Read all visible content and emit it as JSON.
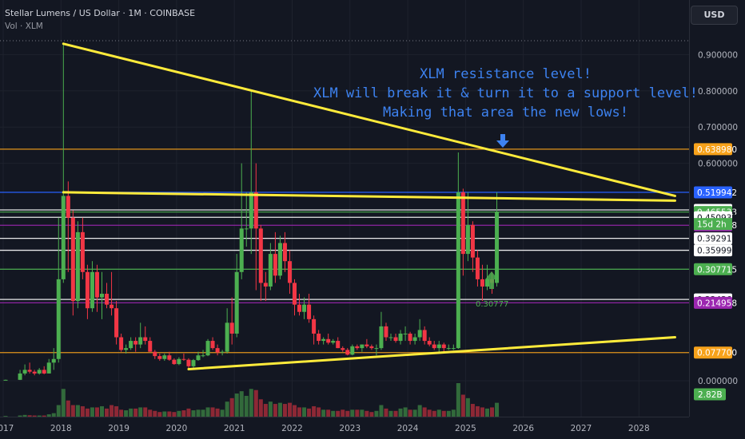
{
  "header": {
    "symbol": "Stellar Lumens / US Dollar · 1M · COINBASE",
    "volume_label": "Vol · XLM",
    "currency": "USD"
  },
  "annotation": {
    "lines": [
      "XLM resistance level!",
      "XLM will break it & turn it to a support level!",
      "Making that area the new lows!"
    ],
    "color": "#3d82f0"
  },
  "chart_data": {
    "type": "candlestick",
    "instrument": "XLMUSD",
    "interval": "1M",
    "x_ticks": [
      "2017",
      "2018",
      "2019",
      "2020",
      "2021",
      "2022",
      "2023",
      "2024",
      "2025",
      "2026",
      "2027",
      "2028"
    ],
    "y_ticks": [
      "0.900000",
      "0.800000",
      "0.700000",
      "0.600000",
      "0.000000"
    ],
    "y_range": [
      0,
      0.95
    ],
    "horizontal_levels": [
      {
        "value": 0.63898,
        "label": "0.638980",
        "color": "#f7a21b",
        "badge": true
      },
      {
        "value": 0.519942,
        "label": "0.519942",
        "color": "#2962ff",
        "badge": true
      },
      {
        "value": 0.471316,
        "label": "0.471316",
        "color": "#ffffff",
        "badge": false
      },
      {
        "value": 0.465533,
        "label": "0.465533",
        "color": "#4caf50",
        "badge": true
      },
      {
        "value": 0.450932,
        "label": "0.450932",
        "color": "#ffffff",
        "badge": false
      },
      {
        "value": 0.428978,
        "label": "0.428978",
        "color": "#9c27b0",
        "badge": true
      },
      {
        "value": 0.392919,
        "label": "0.392919",
        "color": "#ffffff",
        "badge": false
      },
      {
        "value": 0.359992,
        "label": "0.359992",
        "color": "#ffffff",
        "badge": false
      },
      {
        "value": 0.307715,
        "label": "0.307715",
        "color": "#4caf50",
        "badge": true
      },
      {
        "value": 0.224366,
        "label": "0.224366",
        "color": "#ffffff",
        "badge": false
      },
      {
        "value": 0.214958,
        "label": "0.214958",
        "color": "#9c27b0",
        "badge": true
      },
      {
        "value": 0.0777,
        "label": "0.077700",
        "color": "#f7a21b",
        "badge": true
      }
    ],
    "countdown": "15d 2h",
    "volume_badge": "2.82B",
    "low_marker": "0.30777",
    "colors": {
      "up": "#4caf50",
      "down": "#f23645",
      "trendline": "#ffeb3b",
      "grid": "#1e222d"
    },
    "candles": [
      {
        "t": "2016-07",
        "o": 0.0021,
        "h": 0.003,
        "l": 0.0015,
        "c": 0.002,
        "v": 0.05
      },
      {
        "t": "2016-10",
        "o": 0.002,
        "h": 0.0028,
        "l": 0.0018,
        "c": 0.0024,
        "v": 0.05
      },
      {
        "t": "2017-01",
        "o": 0.0024,
        "h": 0.003,
        "l": 0.002,
        "c": 0.0025,
        "v": 0.06
      },
      {
        "t": "2017-04",
        "o": 0.0025,
        "h": 0.03,
        "l": 0.002,
        "c": 0.02,
        "v": 0.1
      },
      {
        "t": "2017-05",
        "o": 0.02,
        "h": 0.045,
        "l": 0.015,
        "c": 0.03,
        "v": 0.15
      },
      {
        "t": "2017-06",
        "o": 0.03,
        "h": 0.05,
        "l": 0.02,
        "c": 0.025,
        "v": 0.12
      },
      {
        "t": "2017-07",
        "o": 0.025,
        "h": 0.03,
        "l": 0.015,
        "c": 0.02,
        "v": 0.1
      },
      {
        "t": "2017-08",
        "o": 0.02,
        "h": 0.035,
        "l": 0.017,
        "c": 0.03,
        "v": 0.1
      },
      {
        "t": "2017-09",
        "o": 0.03,
        "h": 0.04,
        "l": 0.018,
        "c": 0.02,
        "v": 0.1
      },
      {
        "t": "2017-10",
        "o": 0.02,
        "h": 0.06,
        "l": 0.02,
        "c": 0.05,
        "v": 0.2
      },
      {
        "t": "2017-11",
        "o": 0.05,
        "h": 0.09,
        "l": 0.03,
        "c": 0.06,
        "v": 0.3
      },
      {
        "t": "2017-12",
        "o": 0.06,
        "h": 0.45,
        "l": 0.05,
        "c": 0.28,
        "v": 1.0
      },
      {
        "t": "2018-01",
        "o": 0.28,
        "h": 0.93,
        "l": 0.27,
        "c": 0.51,
        "v": 2.4
      },
      {
        "t": "2018-02",
        "o": 0.51,
        "h": 0.55,
        "l": 0.3,
        "c": 0.45,
        "v": 1.4
      },
      {
        "t": "2018-03",
        "o": 0.45,
        "h": 0.47,
        "l": 0.18,
        "c": 0.22,
        "v": 1.0
      },
      {
        "t": "2018-04",
        "o": 0.22,
        "h": 0.44,
        "l": 0.2,
        "c": 0.41,
        "v": 1.0
      },
      {
        "t": "2018-05",
        "o": 0.41,
        "h": 0.45,
        "l": 0.28,
        "c": 0.3,
        "v": 0.9
      },
      {
        "t": "2018-06",
        "o": 0.3,
        "h": 0.32,
        "l": 0.17,
        "c": 0.2,
        "v": 0.7
      },
      {
        "t": "2018-07",
        "o": 0.2,
        "h": 0.33,
        "l": 0.19,
        "c": 0.3,
        "v": 0.8
      },
      {
        "t": "2018-08",
        "o": 0.3,
        "h": 0.32,
        "l": 0.19,
        "c": 0.23,
        "v": 0.8
      },
      {
        "t": "2018-09",
        "o": 0.23,
        "h": 0.3,
        "l": 0.17,
        "c": 0.24,
        "v": 0.9
      },
      {
        "t": "2018-10",
        "o": 0.24,
        "h": 0.27,
        "l": 0.2,
        "c": 0.21,
        "v": 0.7
      },
      {
        "t": "2018-11",
        "o": 0.21,
        "h": 0.3,
        "l": 0.18,
        "c": 0.2,
        "v": 1.0
      },
      {
        "t": "2018-12",
        "o": 0.2,
        "h": 0.22,
        "l": 0.1,
        "c": 0.12,
        "v": 0.9
      },
      {
        "t": "2019-01",
        "o": 0.12,
        "h": 0.13,
        "l": 0.08,
        "c": 0.085,
        "v": 0.6
      },
      {
        "t": "2019-02",
        "o": 0.085,
        "h": 0.1,
        "l": 0.075,
        "c": 0.09,
        "v": 0.55
      },
      {
        "t": "2019-03",
        "o": 0.09,
        "h": 0.12,
        "l": 0.085,
        "c": 0.11,
        "v": 0.7
      },
      {
        "t": "2019-04",
        "o": 0.11,
        "h": 0.12,
        "l": 0.08,
        "c": 0.1,
        "v": 0.7
      },
      {
        "t": "2019-05",
        "o": 0.1,
        "h": 0.16,
        "l": 0.09,
        "c": 0.12,
        "v": 0.8
      },
      {
        "t": "2019-06",
        "o": 0.12,
        "h": 0.15,
        "l": 0.1,
        "c": 0.11,
        "v": 0.8
      },
      {
        "t": "2019-07",
        "o": 0.11,
        "h": 0.12,
        "l": 0.08,
        "c": 0.08,
        "v": 0.6
      },
      {
        "t": "2019-08",
        "o": 0.08,
        "h": 0.085,
        "l": 0.06,
        "c": 0.068,
        "v": 0.5
      },
      {
        "t": "2019-09",
        "o": 0.068,
        "h": 0.075,
        "l": 0.055,
        "c": 0.06,
        "v": 0.4
      },
      {
        "t": "2019-10",
        "o": 0.06,
        "h": 0.075,
        "l": 0.055,
        "c": 0.07,
        "v": 0.45
      },
      {
        "t": "2019-11",
        "o": 0.07,
        "h": 0.08,
        "l": 0.055,
        "c": 0.058,
        "v": 0.45
      },
      {
        "t": "2019-12",
        "o": 0.058,
        "h": 0.062,
        "l": 0.044,
        "c": 0.046,
        "v": 0.4
      },
      {
        "t": "2020-01",
        "o": 0.046,
        "h": 0.065,
        "l": 0.043,
        "c": 0.06,
        "v": 0.5
      },
      {
        "t": "2020-02",
        "o": 0.06,
        "h": 0.075,
        "l": 0.055,
        "c": 0.058,
        "v": 0.55
      },
      {
        "t": "2020-03",
        "o": 0.058,
        "h": 0.062,
        "l": 0.03,
        "c": 0.04,
        "v": 0.7
      },
      {
        "t": "2020-04",
        "o": 0.04,
        "h": 0.06,
        "l": 0.036,
        "c": 0.057,
        "v": 0.55
      },
      {
        "t": "2020-05",
        "o": 0.057,
        "h": 0.08,
        "l": 0.055,
        "c": 0.07,
        "v": 0.6
      },
      {
        "t": "2020-06",
        "o": 0.07,
        "h": 0.085,
        "l": 0.065,
        "c": 0.07,
        "v": 0.6
      },
      {
        "t": "2020-07",
        "o": 0.07,
        "h": 0.115,
        "l": 0.068,
        "c": 0.11,
        "v": 0.8
      },
      {
        "t": "2020-08",
        "o": 0.11,
        "h": 0.12,
        "l": 0.085,
        "c": 0.09,
        "v": 0.8
      },
      {
        "t": "2020-09",
        "o": 0.09,
        "h": 0.1,
        "l": 0.07,
        "c": 0.078,
        "v": 0.7
      },
      {
        "t": "2020-10",
        "o": 0.078,
        "h": 0.085,
        "l": 0.07,
        "c": 0.08,
        "v": 0.6
      },
      {
        "t": "2020-11",
        "o": 0.08,
        "h": 0.2,
        "l": 0.075,
        "c": 0.16,
        "v": 1.3
      },
      {
        "t": "2020-12",
        "o": 0.16,
        "h": 0.23,
        "l": 0.1,
        "c": 0.13,
        "v": 1.6
      },
      {
        "t": "2021-01",
        "o": 0.13,
        "h": 0.35,
        "l": 0.12,
        "c": 0.3,
        "v": 2.0
      },
      {
        "t": "2021-02",
        "o": 0.3,
        "h": 0.6,
        "l": 0.28,
        "c": 0.42,
        "v": 2.2
      },
      {
        "t": "2021-03",
        "o": 0.42,
        "h": 0.52,
        "l": 0.37,
        "c": 0.42,
        "v": 1.8
      },
      {
        "t": "2021-04",
        "o": 0.42,
        "h": 0.8,
        "l": 0.35,
        "c": 0.52,
        "v": 2.4
      },
      {
        "t": "2021-05",
        "o": 0.52,
        "h": 0.6,
        "l": 0.25,
        "c": 0.42,
        "v": 2.3
      },
      {
        "t": "2021-06",
        "o": 0.42,
        "h": 0.43,
        "l": 0.22,
        "c": 0.27,
        "v": 1.5
      },
      {
        "t": "2021-07",
        "o": 0.27,
        "h": 0.3,
        "l": 0.22,
        "c": 0.26,
        "v": 1.1
      },
      {
        "t": "2021-08",
        "o": 0.26,
        "h": 0.38,
        "l": 0.25,
        "c": 0.35,
        "v": 1.3
      },
      {
        "t": "2021-09",
        "o": 0.35,
        "h": 0.41,
        "l": 0.27,
        "c": 0.29,
        "v": 1.1
      },
      {
        "t": "2021-10",
        "o": 0.29,
        "h": 0.4,
        "l": 0.28,
        "c": 0.38,
        "v": 1.2
      },
      {
        "t": "2021-11",
        "o": 0.38,
        "h": 0.41,
        "l": 0.3,
        "c": 0.33,
        "v": 1.1
      },
      {
        "t": "2021-12",
        "o": 0.33,
        "h": 0.36,
        "l": 0.24,
        "c": 0.27,
        "v": 1.2
      },
      {
        "t": "2022-01",
        "o": 0.27,
        "h": 0.28,
        "l": 0.18,
        "c": 0.21,
        "v": 1.0
      },
      {
        "t": "2022-02",
        "o": 0.21,
        "h": 0.24,
        "l": 0.18,
        "c": 0.19,
        "v": 0.8
      },
      {
        "t": "2022-03",
        "o": 0.19,
        "h": 0.23,
        "l": 0.17,
        "c": 0.21,
        "v": 0.8
      },
      {
        "t": "2022-04",
        "o": 0.21,
        "h": 0.24,
        "l": 0.16,
        "c": 0.17,
        "v": 0.7
      },
      {
        "t": "2022-05",
        "o": 0.17,
        "h": 0.18,
        "l": 0.1,
        "c": 0.13,
        "v": 0.9
      },
      {
        "t": "2022-06",
        "o": 0.13,
        "h": 0.14,
        "l": 0.1,
        "c": 0.11,
        "v": 0.8
      },
      {
        "t": "2022-07",
        "o": 0.11,
        "h": 0.12,
        "l": 0.1,
        "c": 0.115,
        "v": 0.6
      },
      {
        "t": "2022-08",
        "o": 0.115,
        "h": 0.13,
        "l": 0.1,
        "c": 0.105,
        "v": 0.6
      },
      {
        "t": "2022-09",
        "o": 0.105,
        "h": 0.115,
        "l": 0.1,
        "c": 0.11,
        "v": 0.5
      },
      {
        "t": "2022-10",
        "o": 0.11,
        "h": 0.12,
        "l": 0.09,
        "c": 0.09,
        "v": 0.5
      },
      {
        "t": "2022-11",
        "o": 0.09,
        "h": 0.095,
        "l": 0.08,
        "c": 0.085,
        "v": 0.6
      },
      {
        "t": "2022-12",
        "o": 0.085,
        "h": 0.09,
        "l": 0.07,
        "c": 0.072,
        "v": 0.5
      },
      {
        "t": "2023-01",
        "o": 0.072,
        "h": 0.1,
        "l": 0.07,
        "c": 0.095,
        "v": 0.6
      },
      {
        "t": "2023-02",
        "o": 0.095,
        "h": 0.1,
        "l": 0.085,
        "c": 0.09,
        "v": 0.6
      },
      {
        "t": "2023-03",
        "o": 0.09,
        "h": 0.1,
        "l": 0.08,
        "c": 0.1,
        "v": 0.6
      },
      {
        "t": "2023-04",
        "o": 0.1,
        "h": 0.115,
        "l": 0.09,
        "c": 0.095,
        "v": 0.5
      },
      {
        "t": "2023-05",
        "o": 0.095,
        "h": 0.1,
        "l": 0.085,
        "c": 0.09,
        "v": 0.4
      },
      {
        "t": "2023-06",
        "o": 0.09,
        "h": 0.1,
        "l": 0.07,
        "c": 0.09,
        "v": 0.5
      },
      {
        "t": "2023-07",
        "o": 0.09,
        "h": 0.19,
        "l": 0.085,
        "c": 0.15,
        "v": 1.0
      },
      {
        "t": "2023-08",
        "o": 0.15,
        "h": 0.16,
        "l": 0.11,
        "c": 0.12,
        "v": 0.7
      },
      {
        "t": "2023-09",
        "o": 0.12,
        "h": 0.13,
        "l": 0.11,
        "c": 0.12,
        "v": 0.5
      },
      {
        "t": "2023-10",
        "o": 0.12,
        "h": 0.13,
        "l": 0.105,
        "c": 0.11,
        "v": 0.5
      },
      {
        "t": "2023-11",
        "o": 0.11,
        "h": 0.14,
        "l": 0.1,
        "c": 0.13,
        "v": 0.7
      },
      {
        "t": "2023-12",
        "o": 0.13,
        "h": 0.15,
        "l": 0.11,
        "c": 0.13,
        "v": 0.8
      },
      {
        "t": "2024-01",
        "o": 0.13,
        "h": 0.135,
        "l": 0.1,
        "c": 0.11,
        "v": 0.6
      },
      {
        "t": "2024-02",
        "o": 0.11,
        "h": 0.13,
        "l": 0.1,
        "c": 0.12,
        "v": 0.6
      },
      {
        "t": "2024-03",
        "o": 0.12,
        "h": 0.17,
        "l": 0.11,
        "c": 0.14,
        "v": 1.0
      },
      {
        "t": "2024-04",
        "o": 0.14,
        "h": 0.15,
        "l": 0.1,
        "c": 0.11,
        "v": 0.8
      },
      {
        "t": "2024-05",
        "o": 0.11,
        "h": 0.12,
        "l": 0.095,
        "c": 0.1,
        "v": 0.6
      },
      {
        "t": "2024-06",
        "o": 0.1,
        "h": 0.11,
        "l": 0.085,
        "c": 0.09,
        "v": 0.5
      },
      {
        "t": "2024-07",
        "o": 0.09,
        "h": 0.11,
        "l": 0.08,
        "c": 0.1,
        "v": 0.6
      },
      {
        "t": "2024-08",
        "o": 0.1,
        "h": 0.105,
        "l": 0.08,
        "c": 0.09,
        "v": 0.5
      },
      {
        "t": "2024-09",
        "o": 0.09,
        "h": 0.1,
        "l": 0.085,
        "c": 0.09,
        "v": 0.5
      },
      {
        "t": "2024-10",
        "o": 0.09,
        "h": 0.1,
        "l": 0.085,
        "c": 0.09,
        "v": 0.6
      },
      {
        "t": "2024-11",
        "o": 0.09,
        "h": 0.63,
        "l": 0.088,
        "c": 0.52,
        "v": 2.9
      },
      {
        "t": "2024-12",
        "o": 0.52,
        "h": 0.53,
        "l": 0.29,
        "c": 0.35,
        "v": 1.9
      },
      {
        "t": "2025-01",
        "o": 0.35,
        "h": 0.52,
        "l": 0.33,
        "c": 0.43,
        "v": 1.6
      },
      {
        "t": "2025-02",
        "o": 0.43,
        "h": 0.44,
        "l": 0.3,
        "c": 0.34,
        "v": 1.1
      },
      {
        "t": "2025-03",
        "o": 0.34,
        "h": 0.36,
        "l": 0.26,
        "c": 0.28,
        "v": 0.9
      },
      {
        "t": "2025-04",
        "o": 0.28,
        "h": 0.32,
        "l": 0.22,
        "c": 0.26,
        "v": 0.8
      },
      {
        "t": "2025-05",
        "o": 0.26,
        "h": 0.32,
        "l": 0.25,
        "c": 0.28,
        "v": 0.7
      },
      {
        "t": "2025-06",
        "o": 0.28,
        "h": 0.3,
        "l": 0.24,
        "c": 0.27,
        "v": 0.8
      },
      {
        "t": "2025-07",
        "o": 0.27,
        "h": 0.52,
        "l": 0.26,
        "c": 0.4655,
        "v": 1.2
      }
    ],
    "trendlines": [
      {
        "from": [
          "2018-01",
          0.93
        ],
        "to": [
          "2028-08",
          0.51
        ]
      },
      {
        "from": [
          "2018-01",
          0.52
        ],
        "to": [
          "2028-08",
          0.497
        ]
      },
      {
        "from": [
          "2020-03",
          0.032
        ],
        "to": [
          "2028-08",
          0.12
        ]
      }
    ]
  }
}
